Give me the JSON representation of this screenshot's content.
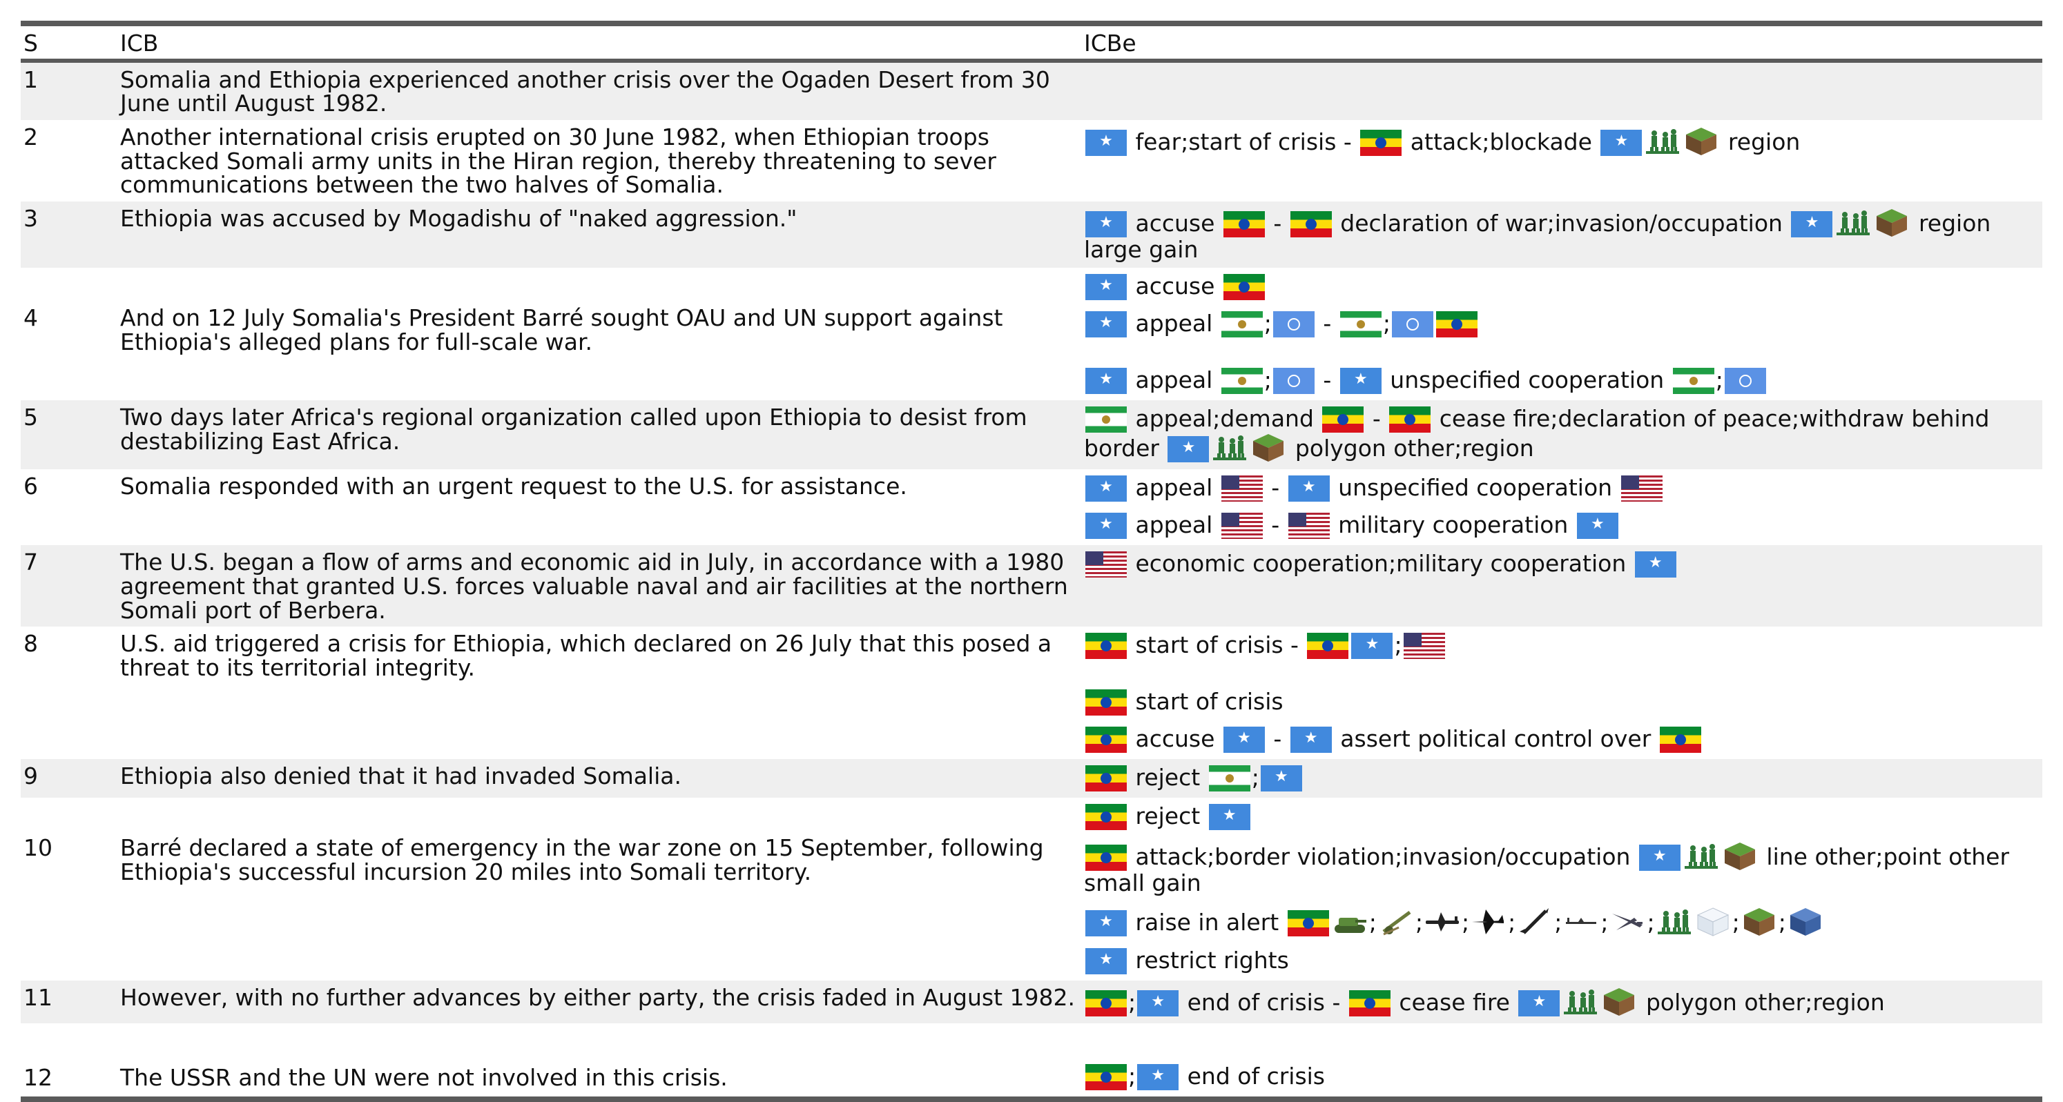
{
  "headers": {
    "s": "S",
    "icb": "ICB",
    "icbe": "ICBe"
  },
  "rows": [
    {
      "s": "1",
      "icb": "Somalia and Ethiopia experienced another crisis over the Ogaden Desert from 30 June until August 1982.",
      "shade": true,
      "events": []
    },
    {
      "s": "2",
      "icb": "Another international crisis erupted on 30 June 1982, when Ethiopian troops attacked Somali army units in the Hiran region, thereby threatening to sever communications between the two halves of Somalia.",
      "shade": false,
      "events": [
        [
          {
            "f": "so"
          },
          {
            "t": "fear;start of crisis -"
          },
          {
            "f": "et"
          },
          {
            "t": "attack;blockade"
          },
          {
            "f": "so"
          },
          {
            "i": "troops-icon"
          },
          {
            "i": "land-icon"
          },
          {
            "t": "region"
          }
        ]
      ]
    },
    {
      "s": "3",
      "icb": "Ethiopia was accused by Mogadishu of \"naked aggression.\"",
      "shade": true,
      "events": [
        [
          {
            "f": "so"
          },
          {
            "t": "accuse"
          },
          {
            "f": "et"
          },
          {
            "t": "-"
          },
          {
            "f": "et"
          },
          {
            "t": "declaration of war;invasion/occupation"
          },
          {
            "f": "so"
          },
          {
            "i": "troops-icon"
          },
          {
            "i": "land-icon"
          },
          {
            "t": "region large gain"
          }
        ]
      ]
    },
    {
      "s": "4",
      "icb": "And on 12 July Somalia's President Barré sought OAU and UN support against Ethiopia's alleged plans for full-scale war.",
      "shade": false,
      "gapMode": "mid",
      "events": [
        [
          {
            "f": "so"
          },
          {
            "t": "accuse"
          },
          {
            "f": "et"
          }
        ],
        [
          {
            "f": "so"
          },
          {
            "t": "appeal"
          },
          {
            "f": "oau"
          },
          {
            "t": ";"
          },
          {
            "f": "un"
          },
          {
            "t": "-"
          },
          {
            "f": "oau"
          },
          {
            "t": ";"
          },
          {
            "f": "un"
          },
          {
            "f": "et"
          }
        ],
        [
          {
            "f": "so"
          },
          {
            "t": "appeal"
          },
          {
            "f": "oau"
          },
          {
            "t": ";"
          },
          {
            "f": "un"
          },
          {
            "t": "-"
          },
          {
            "f": "so"
          },
          {
            "t": "unspecified cooperation"
          },
          {
            "f": "oau"
          },
          {
            "t": ";"
          },
          {
            "f": "un"
          }
        ]
      ]
    },
    {
      "s": "5",
      "icb": "Two days later Africa's regional organization called upon Ethiopia to desist from destabilizing East Africa.",
      "shade": true,
      "events": [
        [
          {
            "f": "oau"
          },
          {
            "t": "appeal;demand"
          },
          {
            "f": "et"
          },
          {
            "t": "-"
          },
          {
            "f": "et"
          },
          {
            "t": "cease fire;declaration of peace;withdraw behind border"
          },
          {
            "f": "so"
          },
          {
            "i": "troops-icon"
          },
          {
            "i": "land-icon"
          },
          {
            "t": "polygon other;region"
          }
        ]
      ]
    },
    {
      "s": "6",
      "icb": "Somalia responded with an urgent request to the U.S. for assistance.",
      "shade": false,
      "events": [
        [
          {
            "f": "so"
          },
          {
            "t": "appeal"
          },
          {
            "f": "us"
          },
          {
            "t": "-"
          },
          {
            "f": "so"
          },
          {
            "t": "unspecified cooperation"
          },
          {
            "f": "us"
          }
        ],
        [
          {
            "f": "so"
          },
          {
            "t": "appeal"
          },
          {
            "f": "us"
          },
          {
            "t": "-"
          },
          {
            "f": "us"
          },
          {
            "t": "military cooperation"
          },
          {
            "f": "so"
          }
        ]
      ]
    },
    {
      "s": "7",
      "icb": "The U.S. began a flow of arms and economic aid in July, in accordance with a 1980 agreement that granted U.S. forces valuable naval and air facilities at the northern Somali port of Berbera.",
      "shade": true,
      "events": [
        [
          {
            "f": "us"
          },
          {
            "t": "economic cooperation;military cooperation"
          },
          {
            "f": "so"
          }
        ]
      ]
    },
    {
      "s": "8",
      "icb": "U.S. aid triggered a crisis for Ethiopia, which declared on 26 July that this posed a threat to its territorial integrity.",
      "shade": false,
      "gapMode": "second",
      "events": [
        [
          {
            "f": "et"
          },
          {
            "t": "start of crisis -"
          },
          {
            "f": "et"
          },
          {
            "f": "so"
          },
          {
            "t": ";"
          },
          {
            "f": "us"
          }
        ],
        [
          {
            "f": "et"
          },
          {
            "t": "start of crisis"
          }
        ],
        [
          {
            "f": "et"
          },
          {
            "t": "accuse"
          },
          {
            "f": "so"
          },
          {
            "t": "-"
          },
          {
            "f": "so"
          },
          {
            "t": "assert political control over"
          },
          {
            "f": "et"
          }
        ]
      ]
    },
    {
      "s": "9",
      "icb": "Ethiopia also denied that it had invaded Somalia.",
      "shade": true,
      "events": [
        [
          {
            "f": "et"
          },
          {
            "t": "reject"
          },
          {
            "f": "oau"
          },
          {
            "t": ";"
          },
          {
            "f": "so"
          }
        ]
      ]
    },
    {
      "s": "10",
      "icb": "Barré declared a state of emergency in the war zone on 15 September, following Ethiopia's successful incursion 20 miles into Somali territory.",
      "shade": false,
      "gapMode": "row10",
      "events": [
        [
          {
            "f": "et"
          },
          {
            "t": "reject"
          },
          {
            "f": "so"
          }
        ],
        [
          {
            "f": "et"
          },
          {
            "t": "attack;border violation;invasion/occupation"
          },
          {
            "f": "so"
          },
          {
            "i": "troops-icon"
          },
          {
            "i": "land-icon"
          },
          {
            "t": "line other;point other small gain"
          }
        ],
        [
          {
            "f": "so"
          },
          {
            "t": "raise in alert"
          },
          {
            "f": "et"
          },
          {
            "i": "tank-icon"
          },
          {
            "t": ";"
          },
          {
            "i": "artillery-icon"
          },
          {
            "t": ";"
          },
          {
            "i": "transport-plane-icon"
          },
          {
            "t": ";"
          },
          {
            "i": "fighter-jet-icon"
          },
          {
            "t": ";"
          },
          {
            "i": "missile-icon"
          },
          {
            "t": ";"
          },
          {
            "i": "drone-icon"
          },
          {
            "t": ";"
          },
          {
            "i": "bomber-icon"
          },
          {
            "t": ";"
          },
          {
            "i": "troops-icon"
          },
          {
            "i": "ice-cube-icon"
          },
          {
            "t": ";"
          },
          {
            "i": "land-icon"
          },
          {
            "t": ";"
          },
          {
            "i": "water-cube-icon"
          }
        ],
        [
          {
            "f": "so"
          },
          {
            "t": "restrict rights"
          }
        ]
      ]
    },
    {
      "s": "11",
      "icb": "However, with no further advances by either party, the crisis faded in August 1982.",
      "shade": true,
      "events": [
        [
          {
            "f": "et"
          },
          {
            "t": ";"
          },
          {
            "f": "so"
          },
          {
            "t": "end of crisis -"
          },
          {
            "f": "et"
          },
          {
            "t": "cease fire"
          },
          {
            "f": "so"
          },
          {
            "i": "troops-icon"
          },
          {
            "i": "land-icon"
          },
          {
            "t": "polygon other;region"
          }
        ]
      ]
    },
    {
      "s": "12",
      "icb": "The USSR and the UN were not involved in this crisis.",
      "shade": false,
      "last": true,
      "gapMode": "row12",
      "events": [
        [
          {
            "f": "et"
          },
          {
            "t": ";"
          },
          {
            "f": "so"
          },
          {
            "t": "end of crisis"
          }
        ]
      ]
    }
  ]
}
